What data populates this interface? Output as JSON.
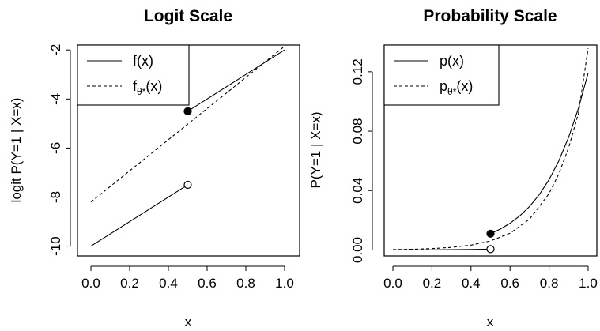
{
  "chart_data": [
    {
      "type": "line",
      "title": "Logit Scale",
      "xlabel": "x",
      "ylabel": "logit  P(Y=1 | X=x)",
      "xlim": [
        0,
        1
      ],
      "ylim": [
        -10.4,
        -1.8
      ],
      "xticks": [
        "0.0",
        "0.2",
        "0.4",
        "0.6",
        "0.8",
        "1.0"
      ],
      "yticks": [
        "-10",
        "-8",
        "-6",
        "-4",
        "-2"
      ],
      "legend": {
        "position": "top-left",
        "entries": [
          {
            "main": "f(x)",
            "sub": "",
            "tail": "",
            "style": "solid"
          },
          {
            "main": "f",
            "sub": "θ*",
            "tail": "(x)",
            "style": "dashed"
          }
        ]
      },
      "series": [
        {
          "name": "f(x)",
          "style": "solid",
          "segments": [
            [
              [
                0,
                -10
              ],
              [
                0.5,
                -7.5
              ]
            ],
            [
              [
                0.5,
                -4.5
              ],
              [
                1.0,
                -2.0
              ]
            ]
          ]
        },
        {
          "name": "fθ*(x)",
          "style": "dashed",
          "segments": [
            [
              [
                0,
                -8.2
              ],
              [
                1.0,
                -1.85
              ]
            ]
          ]
        }
      ],
      "points": [
        {
          "x": 0.5,
          "y": -4.5,
          "filled": true
        },
        {
          "x": 0.5,
          "y": -7.5,
          "filled": false
        }
      ]
    },
    {
      "type": "line",
      "title": "Probability Scale",
      "xlabel": "x",
      "ylabel": "P(Y=1 | X=x)",
      "xlim": [
        0,
        1
      ],
      "ylim": [
        -0.004,
        0.138
      ],
      "xticks": [
        "0.0",
        "0.2",
        "0.4",
        "0.6",
        "0.8",
        "1.0"
      ],
      "yticks": [
        "0.00",
        "0.04",
        "0.08",
        "0.12"
      ],
      "legend": {
        "position": "top-left",
        "entries": [
          {
            "main": "p(x)",
            "sub": "",
            "tail": "",
            "style": "solid"
          },
          {
            "main": "p",
            "sub": "θ*",
            "tail": "(x)",
            "style": "dashed"
          }
        ]
      },
      "series": [
        {
          "name": "p(x)",
          "style": "solid",
          "segments": [
            [
              [
                0,
                4.54e-05
              ],
              [
                0.1,
                7.48e-05
              ],
              [
                0.2,
                0.000123
              ],
              [
                0.3,
                0.000203
              ],
              [
                0.4,
                0.000335
              ],
              [
                0.5,
                0.000553
              ]
            ],
            [
              [
                0.5,
                0.011
              ],
              [
                0.55,
                0.0141
              ],
              [
                0.6,
                0.018
              ],
              [
                0.65,
                0.023
              ],
              [
                0.7,
                0.0293
              ],
              [
                0.75,
                0.0373
              ],
              [
                0.8,
                0.0474
              ],
              [
                0.85,
                0.0601
              ],
              [
                0.9,
                0.0759
              ],
              [
                0.95,
                0.0953
              ],
              [
                1.0,
                0.1192
              ]
            ]
          ]
        },
        {
          "name": "pθ*(x)",
          "style": "dashed",
          "segments": [
            [
              [
                0,
                0.00027
              ],
              [
                0.1,
                0.00051
              ],
              [
                0.2,
                0.00095
              ],
              [
                0.3,
                0.00177
              ],
              [
                0.4,
                0.0033
              ],
              [
                0.5,
                0.0061
              ],
              [
                0.6,
                0.0113
              ],
              [
                0.7,
                0.0208
              ],
              [
                0.8,
                0.038
              ],
              [
                0.85,
                0.0513
              ],
              [
                0.9,
                0.0689
              ],
              [
                0.95,
                0.0918
              ],
              [
                1.0,
                0.1358
              ]
            ]
          ]
        }
      ],
      "points": [
        {
          "x": 0.5,
          "y": 0.011,
          "filled": true
        },
        {
          "x": 0.5,
          "y": 0.0006,
          "filled": false
        }
      ]
    }
  ]
}
